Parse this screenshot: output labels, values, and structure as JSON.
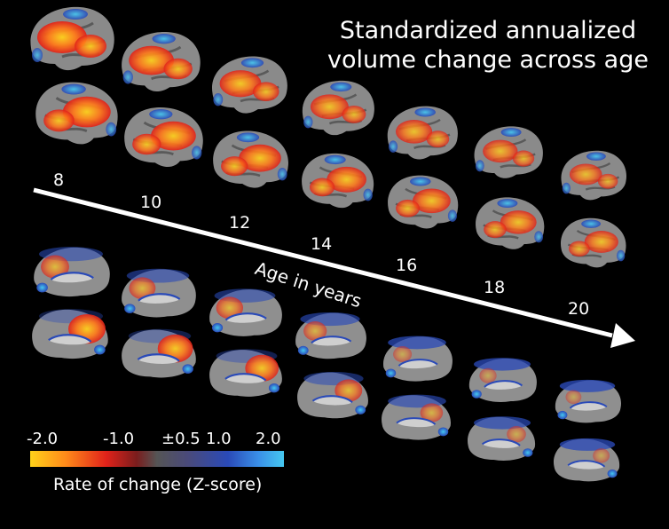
{
  "title_line1": "Standardized annualized",
  "title_line2": "volume change across age",
  "axis": {
    "title": "Age in years",
    "ages": [
      "8",
      "10",
      "12",
      "14",
      "16",
      "18",
      "20"
    ]
  },
  "colorbar": {
    "ticks": [
      "-2.0",
      "-1.0",
      "±0.5",
      "1.0",
      "2.0"
    ],
    "label": "Rate of change (Z-score)"
  },
  "colors": {
    "background": "#000000",
    "decline_strong": "#ffd21a",
    "decline": "#e0221a",
    "neutral": "#555555",
    "growth": "#2a4ab8",
    "growth_strong": "#45c8f0"
  }
}
